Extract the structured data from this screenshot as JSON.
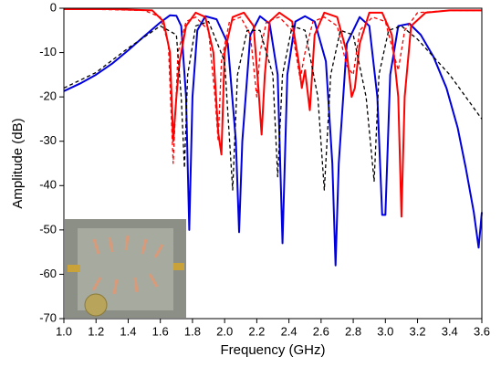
{
  "chart_data": {
    "type": "line",
    "x_label": "Frequency (GHz)",
    "y_label": "Amplitude (dB)",
    "xlim": [
      1.0,
      3.6
    ],
    "xticks": [
      {
        "value": 1.0,
        "label": "1.0"
      },
      {
        "value": 1.2,
        "label": "1.2"
      },
      {
        "value": 1.4,
        "label": "1.4"
      },
      {
        "value": 1.6,
        "label": "1.6"
      },
      {
        "value": 1.8,
        "label": "1.8"
      },
      {
        "value": 2.0,
        "label": "2.0"
      },
      {
        "value": 2.2,
        "label": "2.2"
      },
      {
        "value": 2.4,
        "label": "2.4"
      },
      {
        "value": 2.6,
        "label": "2.6"
      },
      {
        "value": 2.8,
        "label": "2.8"
      },
      {
        "value": 3.0,
        "label": "3.0"
      },
      {
        "value": 3.2,
        "label": "3.2"
      },
      {
        "value": 3.4,
        "label": "3.4"
      },
      {
        "value": 3.6,
        "label": "3.6"
      }
    ],
    "ylim": [
      -70,
      0
    ],
    "yticks": [
      -70,
      -60,
      -50,
      -40,
      -30,
      -20,
      -10,
      0
    ],
    "series": [
      {
        "color": "#0000dd",
        "dash": false,
        "x": [
          1.0,
          1.1,
          1.2,
          1.3,
          1.4,
          1.5,
          1.6,
          1.66,
          1.7,
          1.73,
          1.76,
          1.78,
          1.8,
          1.83,
          1.88,
          1.95,
          2.02,
          2.07,
          2.09,
          2.11,
          2.16,
          2.22,
          2.28,
          2.33,
          2.36,
          2.39,
          2.44,
          2.5,
          2.56,
          2.63,
          2.67,
          2.69,
          2.71,
          2.76,
          2.84,
          2.9,
          2.95,
          2.98,
          3.0,
          3.03,
          3.08,
          3.15,
          3.22,
          3.3,
          3.38,
          3.45,
          3.5,
          3.55,
          3.58,
          3.6
        ],
        "values": [
          -18.7,
          -17,
          -15,
          -12.5,
          -9.5,
          -6.3,
          -3.2,
          -1.6,
          -1.7,
          -4,
          -20,
          -50,
          -20,
          -5,
          -1.8,
          -2.5,
          -8,
          -30,
          -50.5,
          -30,
          -6,
          -1.8,
          -3.5,
          -15,
          -53,
          -15,
          -3,
          -1.8,
          -3,
          -12,
          -35,
          -58,
          -35,
          -8,
          -2,
          -4,
          -20,
          -46.6,
          -46.6,
          -15,
          -4,
          -3.5,
          -6,
          -11,
          -18,
          -27,
          -36,
          -46,
          -54,
          -46
        ]
      },
      {
        "color": "#ff0000",
        "dash": false,
        "x": [
          1.0,
          1.3,
          1.55,
          1.62,
          1.66,
          1.68,
          1.7,
          1.72,
          1.76,
          1.82,
          1.88,
          1.93,
          1.96,
          1.98,
          2.0,
          2.05,
          2.12,
          2.18,
          2.21,
          2.23,
          2.25,
          2.28,
          2.34,
          2.42,
          2.46,
          2.48,
          2.5,
          2.53,
          2.56,
          2.62,
          2.7,
          2.76,
          2.79,
          2.81,
          2.84,
          2.9,
          2.98,
          3.04,
          3.08,
          3.1,
          3.12,
          3.16,
          3.25,
          3.4,
          3.6
        ],
        "values": [
          -0.2,
          -0.2,
          -0.5,
          -3,
          -10,
          -30,
          -20,
          -12,
          -4,
          -1,
          -2,
          -10,
          -28,
          -33,
          -10,
          -2,
          -1,
          -4,
          -18,
          -28.5,
          -15,
          -3,
          -1,
          -3,
          -12,
          -18,
          -14,
          -23,
          -6,
          -1,
          -2,
          -10,
          -20,
          -18,
          -8,
          -1,
          -1,
          -6,
          -20,
          -47,
          -20,
          -4,
          -1,
          -0.5,
          -0.5
        ]
      },
      {
        "color": "#ff0000",
        "dash": true,
        "x": [
          1.0,
          1.5,
          1.6,
          1.65,
          1.68,
          1.71,
          1.76,
          1.82,
          1.9,
          1.94,
          1.96,
          1.98,
          2.03,
          2.1,
          2.16,
          2.2,
          2.22,
          2.26,
          2.34,
          2.42,
          2.47,
          2.5,
          2.55,
          2.62,
          2.7,
          2.76,
          2.8,
          2.84,
          2.92,
          3.0,
          3.05,
          3.08,
          3.12,
          3.2,
          3.4,
          3.6
        ],
        "values": [
          -0.1,
          -0.5,
          -2,
          -8,
          -35,
          -10,
          -3,
          -2,
          -5,
          -20,
          -30,
          -12,
          -3,
          -2,
          -6,
          -20,
          -10,
          -3,
          -2,
          -5,
          -16,
          -10,
          -3,
          -2,
          -4,
          -13,
          -15,
          -5,
          -2,
          -3,
          -10,
          -14,
          -5,
          -1,
          -0.5,
          -0.5
        ]
      },
      {
        "color": "#000000",
        "dash": true,
        "x": [
          1.0,
          1.2,
          1.4,
          1.5,
          1.6,
          1.7,
          1.73,
          1.75,
          1.77,
          1.82,
          1.9,
          2.0,
          2.05,
          2.08,
          2.14,
          2.22,
          2.3,
          2.33,
          2.36,
          2.42,
          2.5,
          2.58,
          2.62,
          2.66,
          2.72,
          2.8,
          2.88,
          2.93,
          2.96,
          3.02,
          3.1,
          3.2,
          3.3,
          3.4,
          3.5,
          3.6
        ],
        "values": [
          -18,
          -14.5,
          -9,
          -6.5,
          -4,
          -6,
          -20,
          -36,
          -15,
          -4,
          -3,
          -12,
          -41,
          -15,
          -5,
          -5,
          -15,
          -38,
          -15,
          -4,
          -5,
          -20,
          -41,
          -15,
          -5,
          -6,
          -20,
          -39,
          -15,
          -5,
          -4,
          -7,
          -11,
          -15,
          -20,
          -25
        ]
      }
    ]
  }
}
